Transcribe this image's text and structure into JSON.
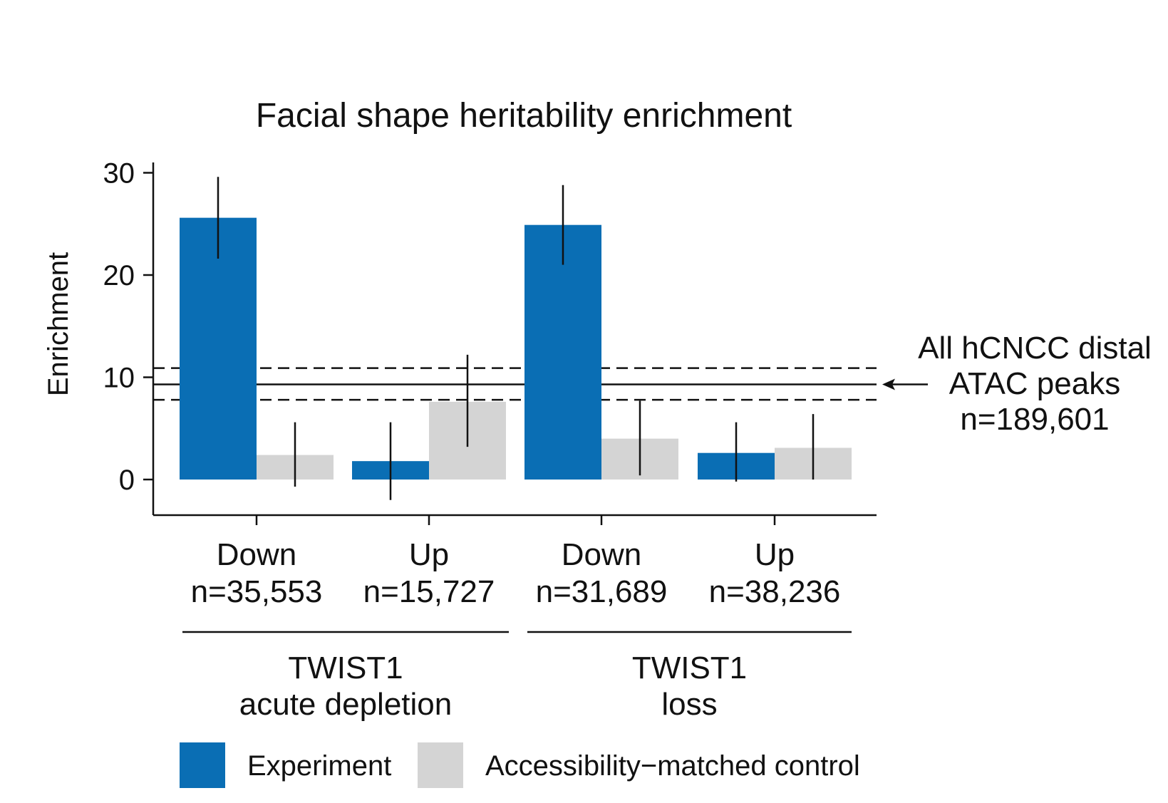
{
  "chart_data": {
    "type": "bar",
    "title": "Facial shape heritability enrichment",
    "ylabel": "Enrichment",
    "xlabel": "",
    "ylim": [
      -3.6,
      31
    ],
    "yticks": [
      0,
      10,
      20,
      30
    ],
    "grid": false,
    "categories": [
      {
        "label": "Down",
        "n": "n=35,553"
      },
      {
        "label": "Up",
        "n": "n=15,727"
      },
      {
        "label": "Down",
        "n": "n=31,689"
      },
      {
        "label": "Up",
        "n": "n=38,236"
      }
    ],
    "groups": [
      {
        "label_line1": "TWIST1",
        "label_line2": "acute depletion",
        "categories": [
          0,
          1
        ]
      },
      {
        "label_line1": "TWIST1",
        "label_line2": "loss",
        "categories": [
          2,
          3
        ]
      }
    ],
    "series": [
      {
        "name": "Experiment",
        "color": "#0a6eb4",
        "values": [
          25.6,
          1.8,
          24.9,
          2.6
        ],
        "err_low": [
          21.6,
          -2.0,
          21.0,
          -0.2
        ],
        "err_high": [
          29.6,
          5.6,
          28.8,
          5.6
        ]
      },
      {
        "name": "Accessibility−matched control",
        "color": "#d4d4d4",
        "values": [
          2.4,
          7.6,
          4.0,
          3.1
        ],
        "err_low": [
          -0.7,
          3.2,
          0.4,
          0.0
        ],
        "err_high": [
          5.6,
          12.2,
          7.7,
          6.4
        ]
      }
    ],
    "reference": {
      "value": 9.3,
      "ci_low": 7.8,
      "ci_high": 10.9,
      "label_lines": [
        "All hCNCC distal",
        "ATAC peaks",
        "n=189,601"
      ]
    },
    "legend_position": "bottom"
  }
}
